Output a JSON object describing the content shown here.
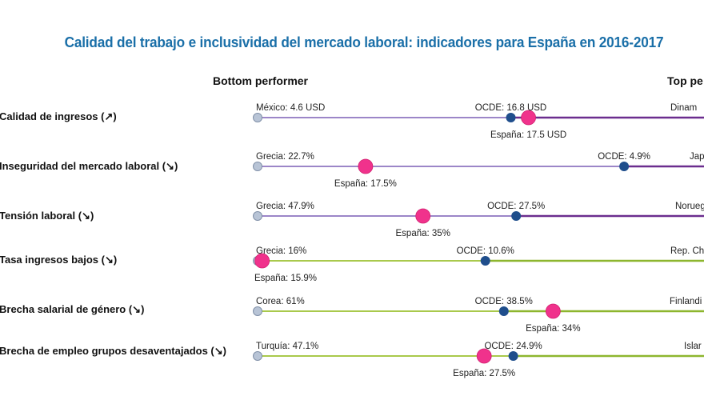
{
  "title": "Calidad del trabajo e inclusividad del mercado laboral: indicadores para España en 2016-2017",
  "headers": {
    "bottom": "Bottom performer",
    "top": "Top pe"
  },
  "colors": {
    "spain": "#f0328c",
    "oecd": "#1f4e8c",
    "bottom_marker": "#b8c4d6",
    "purple_light": "#9c86c8",
    "purple_dark": "#6b2d8e",
    "green_light": "#a9c94c",
    "green_dark": "#8db62e",
    "title": "#1a6fa8"
  },
  "chart_data": {
    "type": "dot-range",
    "title": "Calidad del trabajo e inclusividad del mercado laboral: indicadores para España en 2016-2017",
    "scale_note": "Each row normalized from bottom performer (left) to top performer (right, cut off)",
    "rows": [
      {
        "label": "Calidad de ingresos (↗)",
        "group": "purple",
        "bottom": {
          "label": "México: 4.6 USD",
          "country": "México",
          "value": 4.6,
          "unit": "USD"
        },
        "oecd": {
          "label": "OCDE: 16.8 USD",
          "value": 16.8,
          "pos": 0.617
        },
        "spain": {
          "label": "España: 17.5 USD",
          "value": 17.5,
          "pos": 0.66
        },
        "top": {
          "label": "Dinam"
        }
      },
      {
        "label": "Inseguridad del mercado laboral (↘)",
        "group": "purple",
        "bottom": {
          "label": "Grecia: 22.7%",
          "country": "Grecia",
          "value": 22.7,
          "unit": "%"
        },
        "oecd": {
          "label": "OCDE: 4.9%",
          "value": 4.9,
          "pos": 0.893
        },
        "spain": {
          "label": "España: 17.5%",
          "value": 17.5,
          "pos": 0.263
        },
        "top": {
          "label": "Jap"
        }
      },
      {
        "label": "Tensión laboral (↘)",
        "group": "purple",
        "bottom": {
          "label": "Grecia: 47.9%",
          "country": "Grecia",
          "value": 47.9,
          "unit": "%"
        },
        "oecd": {
          "label": "OCDE: 27.5%",
          "value": 27.5,
          "pos": 0.63
        },
        "spain": {
          "label": "España: 35%",
          "value": 35,
          "pos": 0.403
        },
        "top": {
          "label": "Norueg"
        }
      },
      {
        "label": "Tasa ingresos bajos (↘)",
        "group": "green",
        "bottom": {
          "label": "Grecia: 16%",
          "country": "Grecia",
          "value": 16,
          "unit": "%"
        },
        "oecd": {
          "label": "OCDE: 10.6%",
          "value": 10.6,
          "pos": 0.555
        },
        "spain": {
          "label": "España: 15.9%",
          "value": 15.9,
          "pos": 0.011
        },
        "top": {
          "label": "Rep. Ch"
        }
      },
      {
        "label": "Brecha salarial de género (↘)",
        "group": "green",
        "bottom": {
          "label": "Corea: 61%",
          "country": "Corea",
          "value": 61,
          "unit": "%"
        },
        "oecd": {
          "label": "OCDE: 38.5%",
          "value": 38.5,
          "pos": 0.6
        },
        "spain": {
          "label": "España: 34%",
          "value": 34,
          "pos": 0.72
        },
        "top": {
          "label": "Finlandi"
        }
      },
      {
        "label": "Brecha de empleo grupos desaventajados (↘)",
        "group": "green",
        "bottom": {
          "label": "Turquía: 47.1%",
          "country": "Turquía",
          "value": 47.1,
          "unit": "%"
        },
        "oecd": {
          "label": "OCDE: 24.9%",
          "value": 24.9,
          "pos": 0.623
        },
        "spain": {
          "label": "España: 27.5%",
          "value": 27.5,
          "pos": 0.552
        },
        "top": {
          "label": "Islar"
        }
      }
    ]
  }
}
